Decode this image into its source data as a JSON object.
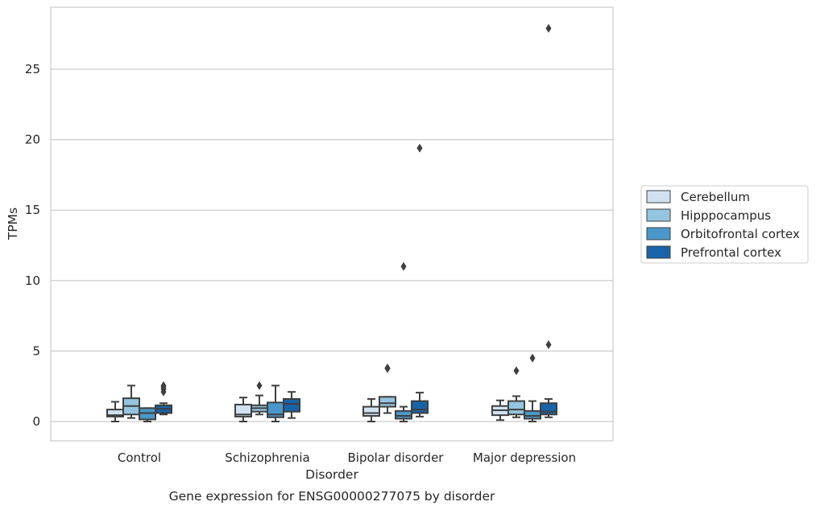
{
  "chart_data": {
    "type": "box",
    "caption": "Gene expression for ENSG00000277075 by disorder",
    "xlabel": "Disorder",
    "ylabel": "TPMs",
    "ylim": [
      -1.3,
      29
    ],
    "yticks": [
      0,
      5,
      10,
      15,
      20,
      25
    ],
    "grid": "horizontal",
    "legend_position": "right",
    "categories": [
      "Control",
      "Schizophrenia",
      "Bipolar disorder",
      "Major depression"
    ],
    "series": [
      {
        "name": "Cerebellum",
        "color": "#d0e1f2",
        "boxes": [
          {
            "whislo": 0.0,
            "q1": 0.35,
            "med": 0.45,
            "q3": 0.85,
            "whishi": 1.4,
            "fliers": []
          },
          {
            "whislo": 0.0,
            "q1": 0.35,
            "med": 0.5,
            "q3": 1.2,
            "whishi": 1.7,
            "fliers": []
          },
          {
            "whislo": 0.0,
            "q1": 0.4,
            "med": 0.6,
            "q3": 1.05,
            "whishi": 1.6,
            "fliers": []
          },
          {
            "whislo": 0.1,
            "q1": 0.45,
            "med": 0.8,
            "q3": 1.1,
            "whishi": 1.5,
            "fliers": []
          }
        ]
      },
      {
        "name": "Hipppocampus",
        "color": "#94c4df",
        "boxes": [
          {
            "whislo": 0.25,
            "q1": 0.5,
            "med": 1.1,
            "q3": 1.65,
            "whishi": 2.55,
            "fliers": []
          },
          {
            "whislo": 0.5,
            "q1": 0.7,
            "med": 0.95,
            "q3": 1.15,
            "whishi": 1.85,
            "fliers": [
              2.55
            ]
          },
          {
            "whislo": 0.6,
            "q1": 1.05,
            "med": 1.3,
            "q3": 1.75,
            "whishi": 1.75,
            "fliers": [
              3.75,
              3.8
            ]
          },
          {
            "whislo": 0.3,
            "q1": 0.5,
            "med": 0.85,
            "q3": 1.45,
            "whishi": 1.8,
            "fliers": [
              3.6
            ]
          }
        ]
      },
      {
        "name": "Orbitofrontal cortex",
        "color": "#4a98c9",
        "boxes": [
          {
            "whislo": 0.0,
            "q1": 0.15,
            "med": 0.6,
            "q3": 0.95,
            "whishi": 0.95,
            "fliers": []
          },
          {
            "whislo": 0.0,
            "q1": 0.3,
            "med": 0.5,
            "q3": 1.35,
            "whishi": 2.55,
            "fliers": []
          },
          {
            "whislo": 0.0,
            "q1": 0.2,
            "med": 0.4,
            "q3": 0.75,
            "whishi": 1.05,
            "fliers": [
              11.0
            ]
          },
          {
            "whislo": 0.0,
            "q1": 0.2,
            "med": 0.4,
            "q3": 0.75,
            "whishi": 1.45,
            "fliers": [
              4.5
            ]
          }
        ]
      },
      {
        "name": "Prefrontal cortex",
        "color": "#1764ab",
        "boxes": [
          {
            "whislo": 0.5,
            "q1": 0.6,
            "med": 0.9,
            "q3": 1.15,
            "whishi": 1.3,
            "fliers": [
              2.1,
              2.3,
              2.45,
              2.55
            ]
          },
          {
            "whislo": 0.25,
            "q1": 0.7,
            "med": 1.25,
            "q3": 1.6,
            "whishi": 2.1,
            "fliers": []
          },
          {
            "whislo": 0.35,
            "q1": 0.6,
            "med": 0.85,
            "q3": 1.45,
            "whishi": 2.05,
            "fliers": [
              19.4
            ]
          },
          {
            "whislo": 0.3,
            "q1": 0.5,
            "med": 0.7,
            "q3": 1.3,
            "whishi": 1.6,
            "fliers": [
              5.45,
              27.9
            ]
          }
        ]
      }
    ]
  }
}
